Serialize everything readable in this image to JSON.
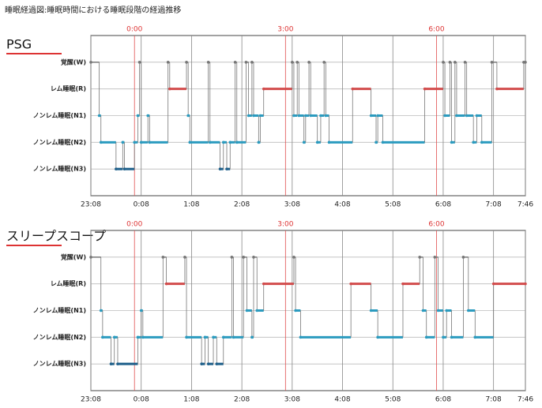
{
  "title": "睡眠経過図:睡眠時間における睡眠段階の経過推移",
  "chart_data": [
    {
      "type": "line",
      "title": "PSG",
      "x": [
        0,
        10,
        12,
        30,
        38,
        40,
        52,
        56,
        58,
        60,
        68,
        70,
        92,
        94,
        114,
        116,
        118,
        140,
        142,
        154,
        158,
        162,
        166,
        172,
        174,
        185,
        188,
        192,
        194,
        200,
        202,
        206,
        240,
        242,
        246,
        248,
        254,
        256,
        260,
        262,
        270,
        274,
        278,
        280,
        284,
        312,
        334,
        340,
        342,
        348,
        398,
        420,
        422,
        428,
        430,
        434,
        436,
        446,
        448,
        456,
        460,
        466,
        478,
        484,
        516,
        518
      ],
      "values": [
        4,
        2,
        1,
        0,
        1,
        0,
        1,
        2,
        4,
        1,
        2,
        1,
        4,
        3,
        4,
        2,
        1,
        4,
        1,
        0,
        1,
        0,
        1,
        4,
        1,
        4,
        2,
        4,
        2,
        1,
        2,
        3,
        4,
        2,
        4,
        2,
        1,
        2,
        4,
        2,
        1,
        2,
        4,
        2,
        1,
        3,
        2,
        1,
        2,
        1,
        3,
        4,
        2,
        4,
        1,
        4,
        2,
        4,
        2,
        1,
        2,
        1,
        4,
        3,
        4,
        4
      ],
      "xlim": [
        0,
        518
      ],
      "xticks": [
        {
          "value": 0,
          "label": "23:08"
        },
        {
          "value": 60,
          "label": "0:08"
        },
        {
          "value": 120,
          "label": "1:08"
        },
        {
          "value": 180,
          "label": "2:08"
        },
        {
          "value": 240,
          "label": "3:08"
        },
        {
          "value": 300,
          "label": "4:08"
        },
        {
          "value": 360,
          "label": "5:08"
        },
        {
          "value": 420,
          "label": "6:08"
        },
        {
          "value": 480,
          "label": "7:08"
        },
        {
          "value": 518,
          "label": "7:46"
        }
      ],
      "ylim": [
        -1,
        5
      ],
      "yticks": [
        {
          "value": 4,
          "label": "覚醒(W)"
        },
        {
          "value": 3,
          "label": "レム睡眠(R)"
        },
        {
          "value": 2,
          "label": "ノンレム睡眠(N1)"
        },
        {
          "value": 1,
          "label": "ノンレム睡眠(N2)"
        },
        {
          "value": 0,
          "label": "ノンレム睡眠(N3)"
        }
      ],
      "markers": [
        {
          "value": 52,
          "label": "0:00"
        },
        {
          "value": 232,
          "label": "3:00"
        },
        {
          "value": 412,
          "label": "6:00"
        }
      ],
      "stage_colors": [
        "#1d5f8a",
        "#2b9bbf",
        "#2b9bbf",
        "#d24b4b",
        "#777777"
      ],
      "grid": true
    },
    {
      "type": "line",
      "title": "スリープスコープ",
      "x": [
        0,
        12,
        14,
        24,
        28,
        32,
        56,
        60,
        62,
        86,
        90,
        112,
        114,
        132,
        136,
        140,
        146,
        150,
        158,
        168,
        170,
        182,
        186,
        192,
        194,
        198,
        206,
        242,
        244,
        250,
        310,
        334,
        342,
        372,
        392,
        396,
        400,
        410,
        414,
        420,
        424,
        430,
        444,
        450,
        458,
        480,
        518
      ],
      "values": [
        4,
        2,
        1,
        0,
        1,
        0,
        1,
        2,
        1,
        4,
        3,
        4,
        1,
        0,
        1,
        0,
        1,
        0,
        1,
        4,
        1,
        4,
        2,
        1,
        4,
        2,
        3,
        4,
        2,
        1,
        3,
        2,
        1,
        3,
        4,
        2,
        1,
        4,
        2,
        1,
        2,
        1,
        4,
        2,
        1,
        3,
        3
      ],
      "xlim": [
        0,
        518
      ],
      "xticks": [
        {
          "value": 0,
          "label": "23:08"
        },
        {
          "value": 60,
          "label": "0:08"
        },
        {
          "value": 120,
          "label": "1:08"
        },
        {
          "value": 180,
          "label": "2:08"
        },
        {
          "value": 240,
          "label": "3:08"
        },
        {
          "value": 300,
          "label": "4:08"
        },
        {
          "value": 360,
          "label": "5:08"
        },
        {
          "value": 420,
          "label": "6:08"
        },
        {
          "value": 480,
          "label": "7:08"
        },
        {
          "value": 518,
          "label": "7:46"
        }
      ],
      "ylim": [
        -1,
        5
      ],
      "yticks": [
        {
          "value": 4,
          "label": "覚醒(W)"
        },
        {
          "value": 3,
          "label": "レム睡眠(R)"
        },
        {
          "value": 2,
          "label": "ノンレム睡眠(N1)"
        },
        {
          "value": 1,
          "label": "ノンレム睡眠(N2)"
        },
        {
          "value": 0,
          "label": "ノンレム睡眠(N3)"
        }
      ],
      "markers": [
        {
          "value": 52,
          "label": "0:00"
        },
        {
          "value": 232,
          "label": "3:00"
        },
        {
          "value": 412,
          "label": "6:00"
        }
      ],
      "stage_colors": [
        "#1d5f8a",
        "#2b9bbf",
        "#2b9bbf",
        "#d24b4b",
        "#777777"
      ],
      "grid": true
    }
  ]
}
